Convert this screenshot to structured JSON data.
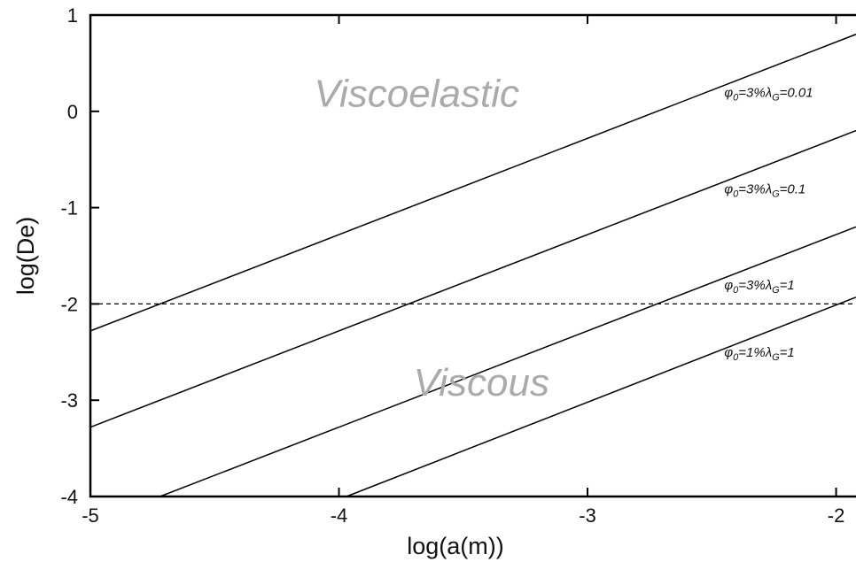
{
  "chart_data": {
    "type": "line",
    "xlabel": "log(a(m))",
    "ylabel": "log(De)",
    "xlim": [
      -5,
      -1.92
    ],
    "ylim": [
      -4,
      1
    ],
    "x_ticks": [
      -5,
      -4,
      -3,
      -2
    ],
    "y_ticks": [
      1,
      0,
      -1,
      -2,
      -3,
      -4
    ],
    "grid": false,
    "colors": {
      "series": "#000000",
      "region_text": "#aaaaaa",
      "threshold": "#000000"
    },
    "region_labels": [
      {
        "text": "Viscoelastic",
        "x": -4.1,
        "y": 0.05
      },
      {
        "text": "Viscous",
        "x": -3.7,
        "y": -2.95
      }
    ],
    "threshold": {
      "y": -2,
      "style": "dashed"
    },
    "series": [
      {
        "label": {
          "phi": "φ",
          "phi_sub": "0",
          "pct": "=3%",
          "lambda": "λ",
          "lambda_sub": "G",
          "value": "=0.01"
        },
        "x": [
          -5,
          -1.92
        ],
        "y": [
          -2.28,
          0.8
        ],
        "label_pos": {
          "x": -2.45,
          "y": 0.15
        }
      },
      {
        "label": {
          "phi": "φ",
          "phi_sub": "0",
          "pct": "=3%",
          "lambda": "λ",
          "lambda_sub": "G",
          "value": "=0.1"
        },
        "x": [
          -5,
          -1.92
        ],
        "y": [
          -3.28,
          -0.2
        ],
        "label_pos": {
          "x": -2.45,
          "y": -0.85
        }
      },
      {
        "label": {
          "phi": "φ",
          "phi_sub": "0",
          "pct": "=3%",
          "lambda": "λ",
          "lambda_sub": "G",
          "value": "=1"
        },
        "x": [
          -4.72,
          -1.92
        ],
        "y": [
          -4,
          -1.2
        ],
        "label_pos": {
          "x": -2.45,
          "y": -1.85
        }
      },
      {
        "label": {
          "phi": "φ",
          "phi_sub": "0",
          "pct": "=1%",
          "lambda": "λ",
          "lambda_sub": "G",
          "value": "=1"
        },
        "x": [
          -3.97,
          -1.92
        ],
        "y": [
          -4,
          -1.93
        ],
        "label_pos": {
          "x": -2.45,
          "y": -2.55
        }
      }
    ]
  }
}
